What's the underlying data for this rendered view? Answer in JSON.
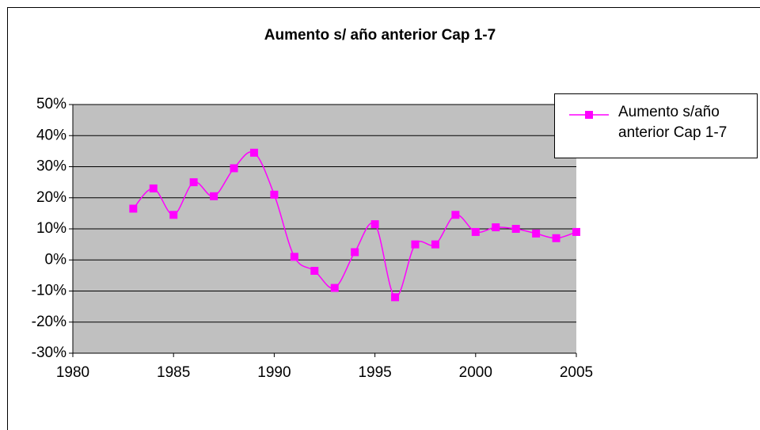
{
  "chart_data": {
    "type": "line",
    "title": "Aumento s/ año anterior Cap 1-7",
    "x": [
      1983,
      1984,
      1985,
      1986,
      1987,
      1988,
      1989,
      1990,
      1991,
      1992,
      1993,
      1994,
      1995,
      1996,
      1997,
      1998,
      1999,
      2000,
      2001,
      2002,
      2003,
      2004,
      2005
    ],
    "series": [
      {
        "name": "Aumento s/año anterior Cap 1-7",
        "color": "#ff00ff",
        "values": [
          16.5,
          23,
          14.5,
          25,
          20.5,
          29.5,
          34.5,
          21,
          1,
          -3.5,
          -9,
          2.5,
          11.5,
          -12,
          5,
          5,
          14.5,
          9,
          10.5,
          10,
          8.5,
          7,
          9
        ]
      }
    ],
    "xlim": [
      1980,
      2005
    ],
    "xticks": [
      1980,
      1985,
      1990,
      1995,
      2000,
      2005
    ],
    "ylim": [
      -30,
      50
    ],
    "yticks": [
      {
        "value": -30,
        "label": "-30%"
      },
      {
        "value": -20,
        "label": "-20%"
      },
      {
        "value": -10,
        "label": "-10%"
      },
      {
        "value": 0,
        "label": "0%"
      },
      {
        "value": 10,
        "label": "10%"
      },
      {
        "value": 20,
        "label": "20%"
      },
      {
        "value": 30,
        "label": "30%"
      },
      {
        "value": 40,
        "label": "40%"
      },
      {
        "value": 50,
        "label": "50%"
      }
    ],
    "grid": true,
    "smooth": true,
    "legend": "right"
  }
}
